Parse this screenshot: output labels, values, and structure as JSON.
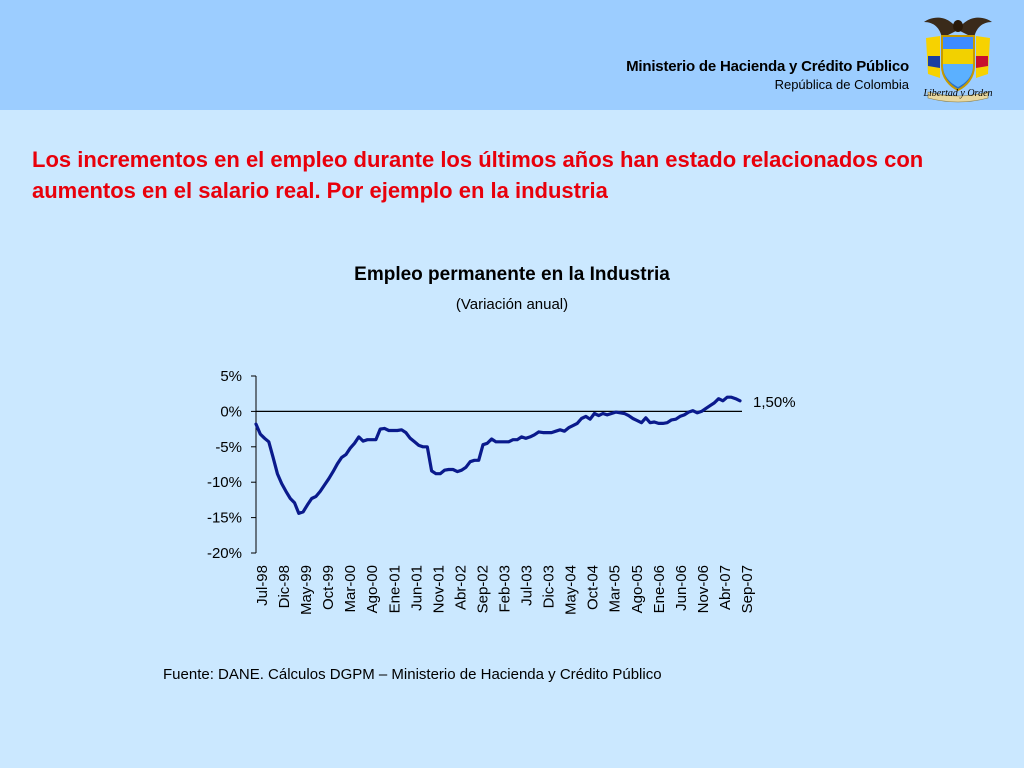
{
  "header": {
    "ministry": "Ministerio de Hacienda y Crédito Público",
    "country": "República de Colombia",
    "motto": "Libertad y Orden",
    "bg_color": "#9ccdff",
    "crest_icon": "coat-of-arms-icon"
  },
  "headline": "Los incrementos en el empleo durante los últimos años han estado relacionados con aumentos en el salario real. Por ejemplo en la industria",
  "source": "Fuente: DANE. Cálculos DGPM – Ministerio de Hacienda y Crédito Público",
  "chart_data": {
    "type": "line",
    "title": "Empleo permanente en la Industria",
    "subtitle": "(Variación anual)",
    "ylim": [
      -20,
      5
    ],
    "yticks": [
      "5%",
      "0%",
      "-5%",
      "-10%",
      "-15%",
      "-20%"
    ],
    "ytick_values": [
      5,
      0,
      -5,
      -10,
      -15,
      -20
    ],
    "xtick_labels": [
      "Jul-98",
      "Dic-98",
      "May-99",
      "Oct-99",
      "Mar-00",
      "Ago-00",
      "Ene-01",
      "Jun-01",
      "Nov-01",
      "Abr-02",
      "Sep-02",
      "Feb-03",
      "Jul-03",
      "Dic-03",
      "May-04",
      "Oct-04",
      "Mar-05",
      "Ago-05",
      "Ene-06",
      "Jun-06",
      "Nov-06",
      "Abr-07",
      "Sep-07"
    ],
    "annotation": "1,50%",
    "line_color": "#0a1a8c",
    "series": [
      {
        "values": [
          -1.8,
          -3.2,
          -3.8,
          -4.3,
          -6.5,
          -8.8,
          -10.2,
          -11.3,
          -12.3,
          -12.9,
          -14.4,
          -14.2,
          -13.2,
          -12.3,
          -12.0,
          -11.3,
          -10.4,
          -9.5,
          -8.5,
          -7.4,
          -6.5,
          -6.1,
          -5.2,
          -4.5,
          -3.6,
          -4.2,
          -4.0,
          -4.0,
          -4.0,
          -2.5,
          -2.4,
          -2.7,
          -2.7,
          -2.7,
          -2.6,
          -3.0,
          -3.8,
          -4.3,
          -4.8,
          -5.0,
          -5.0,
          -8.4,
          -8.8,
          -8.8,
          -8.3,
          -8.2,
          -8.2,
          -8.5,
          -8.3,
          -7.9,
          -7.1,
          -6.9,
          -6.9,
          -4.7,
          -4.5,
          -3.9,
          -4.3,
          -4.3,
          -4.3,
          -4.3,
          -4.0,
          -4.0,
          -3.6,
          -3.8,
          -3.6,
          -3.3,
          -2.9,
          -3.0,
          -3.0,
          -3.0,
          -2.8,
          -2.6,
          -2.8,
          -2.3,
          -2.0,
          -1.7,
          -1.0,
          -0.7,
          -1.1,
          -0.3,
          -0.6,
          -0.3,
          -0.5,
          -0.3,
          -0.1,
          -0.2,
          -0.3,
          -0.6,
          -1.0,
          -1.3,
          -1.6,
          -0.9,
          -1.6,
          -1.5,
          -1.7,
          -1.7,
          -1.6,
          -1.2,
          -1.1,
          -0.7,
          -0.5,
          -0.1,
          0.1,
          -0.2,
          0.0,
          0.4,
          0.8,
          1.2,
          1.8,
          1.5,
          2.0,
          2.0,
          1.8,
          1.5
        ]
      }
    ]
  }
}
